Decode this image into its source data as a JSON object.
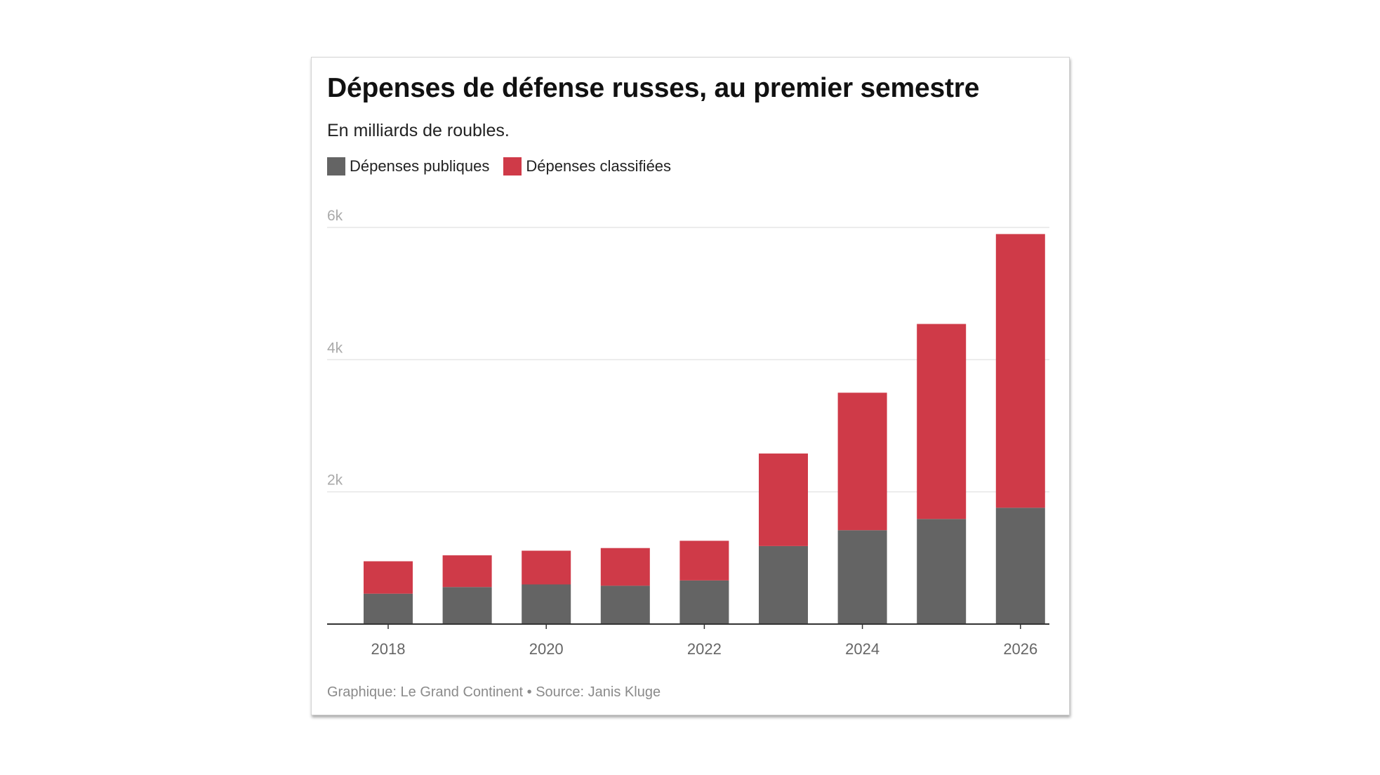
{
  "colors": {
    "public": "#646464",
    "classified": "#cf3a48",
    "grid": "#e6e6e6",
    "axis": "#333333",
    "tick_label": "#aaaaaa",
    "x_label": "#666666"
  },
  "chart_data": {
    "type": "bar",
    "stacked": true,
    "title": "Dépenses de défense russes, au premier semestre",
    "subtitle": "En milliards de roubles.",
    "x": [
      2018,
      2019,
      2020,
      2021,
      2022,
      2023,
      2024,
      2025,
      2026
    ],
    "x_tick_labels": [
      "2018",
      "2020",
      "2022",
      "2024",
      "2026"
    ],
    "series": [
      {
        "name": "Dépenses publiques",
        "values": [
          460,
          560,
          600,
          580,
          660,
          1180,
          1420,
          1590,
          1760
        ]
      },
      {
        "name": "Dépenses classifiées",
        "values": [
          490,
          480,
          510,
          570,
          600,
          1400,
          2080,
          2950,
          4140
        ]
      }
    ],
    "ylim": [
      0,
      6000
    ],
    "y_ticks": [
      2000,
      4000,
      6000
    ],
    "y_tick_labels": [
      "2k",
      "4k",
      "6k"
    ],
    "grid": true,
    "legend_position": "top-left",
    "footer": "Graphique: Le Grand Continent • Source: Janis Kluge"
  }
}
